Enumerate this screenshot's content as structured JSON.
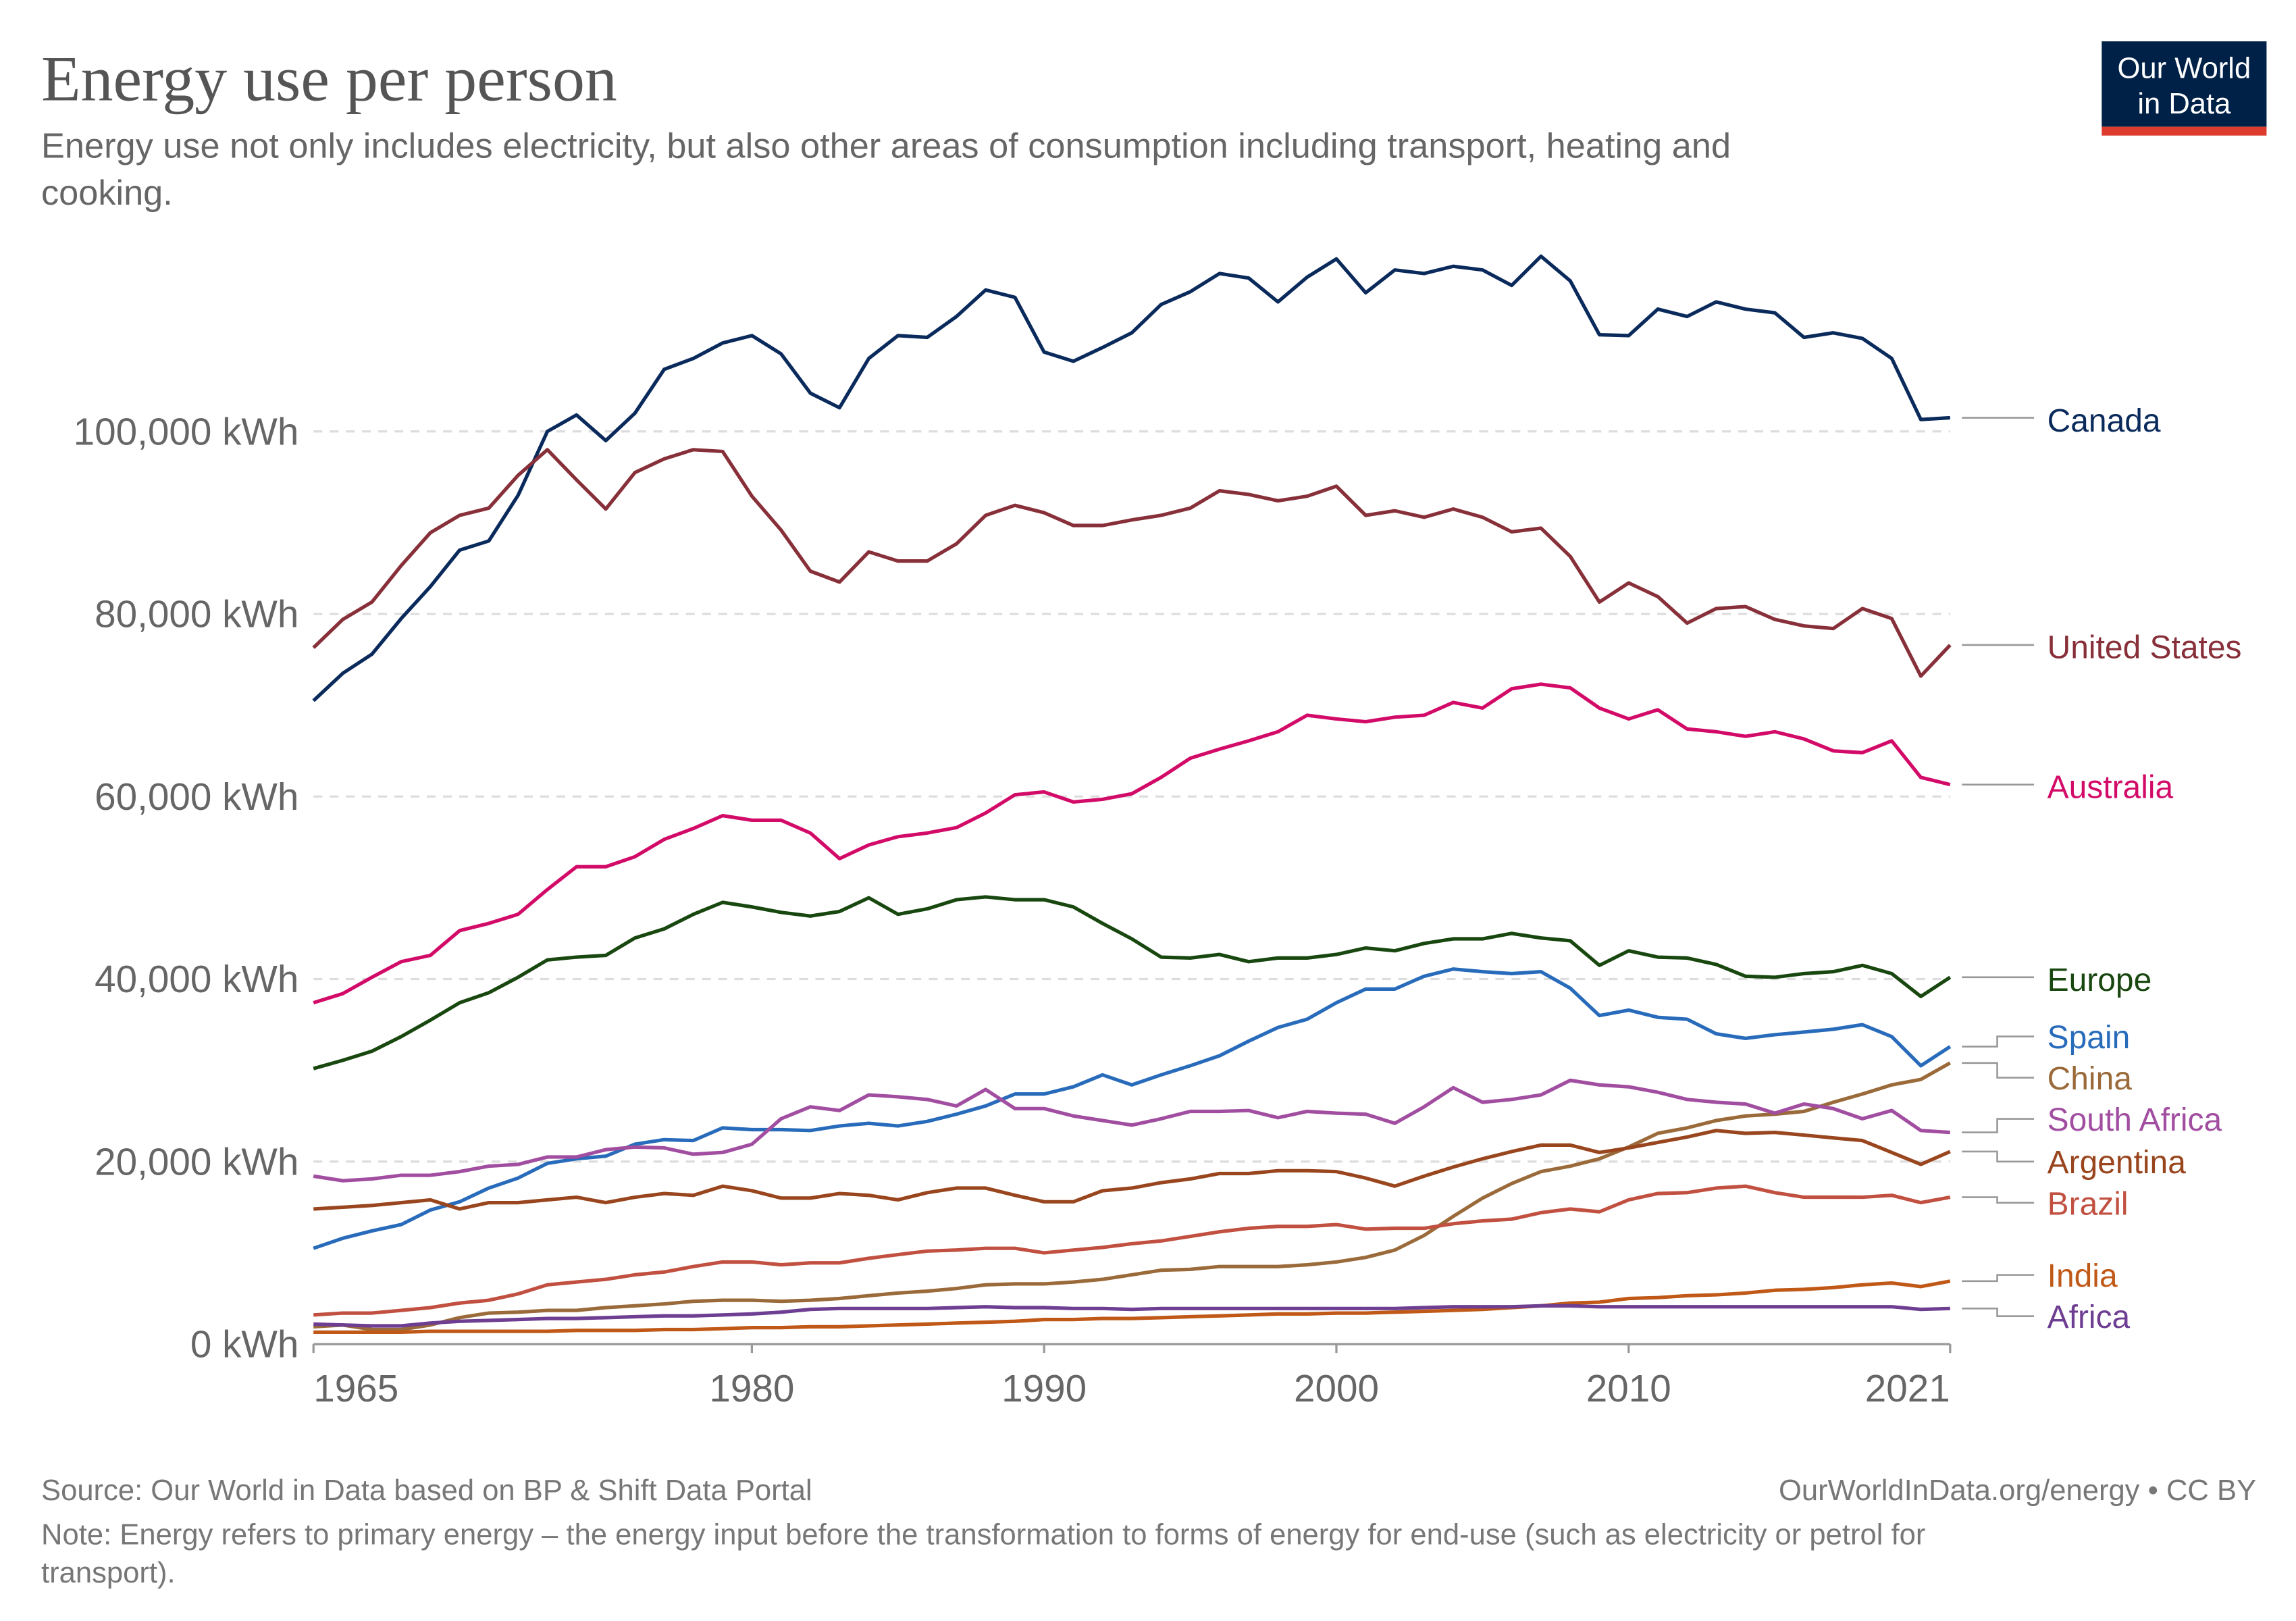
{
  "header": {
    "title": "Energy use per person",
    "subtitle_line1": "Energy use not only includes electricity, but also other areas of consumption including transport, heating and",
    "subtitle_line2": "cooking.",
    "logo_line1": "Our World",
    "logo_line2": "in Data",
    "logo_colors": {
      "background": "#002147",
      "bar": "#dc3b2e"
    }
  },
  "footer": {
    "source": "Source: Our World in Data based on BP & Shift Data Portal",
    "license": "OurWorldInData.org/energy • CC BY",
    "note_line1": "Note: Energy refers to primary energy – the energy input before the transformation to forms of energy for end-use (such as electricity or petrol for",
    "note_line2": "transport)."
  },
  "chart_data": {
    "type": "line",
    "title": "Energy use per person",
    "unit": "kWh",
    "x_start": 1965,
    "x_end": 2021,
    "xlim": [
      1965,
      2021
    ],
    "ylim": [
      0,
      120000
    ],
    "grid": "horizontal dashed",
    "legend": "right (line-end labels)",
    "x_ticks": [
      "1965",
      "1980",
      "1990",
      "2000",
      "2010",
      "2021"
    ],
    "y_ticks": [
      {
        "value": 0,
        "label": "0 kWh"
      },
      {
        "value": 20000,
        "label": "20,000 kWh"
      },
      {
        "value": 40000,
        "label": "40,000 kWh"
      },
      {
        "value": 60000,
        "label": "60,000 kWh"
      },
      {
        "value": 80000,
        "label": "80,000 kWh"
      },
      {
        "value": 100000,
        "label": "100,000 kWh"
      }
    ],
    "series": [
      {
        "name": "Canada",
        "color": "#0a2a5c",
        "values": [
          70500,
          73500,
          75600,
          79500,
          83000,
          87000,
          88000,
          93000,
          100000,
          101800,
          99000,
          102000,
          106800,
          108000,
          109700,
          110500,
          108500,
          104200,
          102600,
          108000,
          110500,
          110300,
          112600,
          115500,
          114700,
          108700,
          107700,
          109200,
          110800,
          113900,
          115300,
          117300,
          116800,
          114200,
          116900,
          118900,
          115200,
          117700,
          117300,
          118100,
          117700,
          116000,
          119200,
          116500,
          110600,
          110500,
          113400,
          112600,
          114200,
          113400,
          113000,
          110300,
          110800,
          110200,
          108000,
          101300,
          101500
        ]
      },
      {
        "name": "United States",
        "color": "#883039",
        "values": [
          76300,
          79400,
          81300,
          85300,
          88900,
          90800,
          91600,
          95200,
          98000,
          94700,
          91500,
          95500,
          97000,
          98000,
          97800,
          92900,
          89200,
          84700,
          83500,
          86800,
          85800,
          85800,
          87700,
          90800,
          91900,
          91100,
          89700,
          89700,
          90300,
          90800,
          91600,
          93500,
          93100,
          92400,
          92900,
          94000,
          90800,
          91300,
          90600,
          91500,
          90600,
          89000,
          89400,
          86300,
          81300,
          83400,
          81900,
          79000,
          80600,
          80800,
          79400,
          78700,
          78400,
          80600,
          79500,
          73200,
          76600
        ]
      },
      {
        "name": "Australia",
        "color": "#d30b68",
        "values": [
          37400,
          38400,
          40200,
          41900,
          42600,
          45300,
          46100,
          47100,
          49800,
          52300,
          52300,
          53400,
          55300,
          56500,
          57900,
          57400,
          57400,
          56000,
          53200,
          54700,
          55600,
          56000,
          56600,
          58200,
          60200,
          60500,
          59400,
          59700,
          60300,
          62100,
          64200,
          65200,
          66100,
          67100,
          68900,
          68500,
          68200,
          68700,
          68900,
          70300,
          69700,
          71800,
          72300,
          71900,
          69700,
          68500,
          69500,
          67400,
          67100,
          66600,
          67100,
          66300,
          65000,
          64800,
          66100,
          62100,
          61300
        ]
      },
      {
        "name": "Europe",
        "color": "#18470f",
        "values": [
          30200,
          31100,
          32100,
          33700,
          35500,
          37400,
          38500,
          40200,
          42100,
          42400,
          42600,
          44500,
          45500,
          47100,
          48400,
          47900,
          47300,
          46900,
          47400,
          48900,
          47100,
          47700,
          48700,
          49000,
          48700,
          48700,
          47900,
          46100,
          44400,
          42400,
          42300,
          42700,
          41900,
          42300,
          42300,
          42700,
          43400,
          43100,
          43900,
          44400,
          44400,
          45000,
          44500,
          44200,
          41500,
          43100,
          42400,
          42300,
          41600,
          40300,
          40200,
          40600,
          40800,
          41500,
          40600,
          38100,
          40200
        ]
      },
      {
        "name": "Spain",
        "color": "#286bbb",
        "values": [
          10500,
          11600,
          12400,
          13100,
          14700,
          15600,
          17100,
          18200,
          19800,
          20300,
          20600,
          21900,
          22400,
          22300,
          23700,
          23500,
          23500,
          23400,
          23900,
          24200,
          23900,
          24400,
          25200,
          26100,
          27400,
          27400,
          28200,
          29500,
          28400,
          29500,
          30500,
          31600,
          33200,
          34700,
          35600,
          37400,
          38900,
          38900,
          40300,
          41100,
          40800,
          40600,
          40800,
          39000,
          36000,
          36600,
          35800,
          35600,
          34000,
          33500,
          33900,
          34200,
          34500,
          35000,
          33700,
          30500,
          32600
        ]
      },
      {
        "name": "China",
        "color": "#9a6a3a",
        "values": [
          1900,
          2100,
          1600,
          1600,
          2100,
          2900,
          3400,
          3500,
          3700,
          3700,
          4000,
          4200,
          4400,
          4700,
          4800,
          4800,
          4700,
          4800,
          5000,
          5300,
          5600,
          5800,
          6100,
          6500,
          6600,
          6600,
          6800,
          7100,
          7600,
          8100,
          8200,
          8500,
          8500,
          8500,
          8700,
          9000,
          9500,
          10300,
          11900,
          14000,
          16000,
          17600,
          18900,
          19500,
          20300,
          21600,
          23100,
          23700,
          24500,
          25000,
          25200,
          25500,
          26500,
          27400,
          28400,
          29000,
          30800
        ]
      },
      {
        "name": "South Africa",
        "color": "#a14ea1",
        "values": [
          18400,
          17900,
          18100,
          18500,
          18500,
          18900,
          19500,
          19700,
          20500,
          20500,
          21300,
          21600,
          21500,
          20800,
          21000,
          21900,
          24700,
          26000,
          25600,
          27300,
          27100,
          26800,
          26100,
          27900,
          25800,
          25800,
          25000,
          24500,
          24000,
          24700,
          25500,
          25500,
          25600,
          24800,
          25500,
          25300,
          25200,
          24200,
          26000,
          28100,
          26500,
          26800,
          27300,
          28900,
          28400,
          28200,
          27600,
          26800,
          26500,
          26300,
          25300,
          26300,
          25800,
          24700,
          25600,
          23400,
          23200
        ]
      },
      {
        "name": "Argentina",
        "color": "#99461f",
        "values": [
          14800,
          15000,
          15200,
          15500,
          15800,
          14800,
          15500,
          15500,
          15800,
          16100,
          15500,
          16100,
          16500,
          16300,
          17300,
          16800,
          16000,
          16000,
          16500,
          16300,
          15800,
          16600,
          17100,
          17100,
          16300,
          15600,
          15600,
          16800,
          17100,
          17700,
          18100,
          18700,
          18700,
          19000,
          19000,
          18900,
          18200,
          17300,
          18400,
          19400,
          20300,
          21100,
          21800,
          21800,
          21000,
          21500,
          22100,
          22700,
          23400,
          23100,
          23200,
          22900,
          22600,
          22300,
          21000,
          19700,
          21100
        ]
      },
      {
        "name": "Brazil",
        "color": "#c15041",
        "values": [
          3200,
          3400,
          3400,
          3700,
          4000,
          4500,
          4800,
          5500,
          6500,
          6800,
          7100,
          7600,
          7900,
          8500,
          9000,
          9000,
          8700,
          8900,
          8900,
          9400,
          9800,
          10200,
          10300,
          10500,
          10500,
          10000,
          10300,
          10600,
          11000,
          11300,
          11800,
          12300,
          12700,
          12900,
          12900,
          13100,
          12600,
          12700,
          12700,
          13200,
          13500,
          13700,
          14400,
          14800,
          14500,
          15800,
          16500,
          16600,
          17100,
          17300,
          16600,
          16100,
          16100,
          16100,
          16300,
          15500,
          16100
        ]
      },
      {
        "name": "India",
        "color": "#c05917",
        "values": [
          1300,
          1300,
          1300,
          1300,
          1400,
          1400,
          1400,
          1400,
          1400,
          1500,
          1500,
          1500,
          1600,
          1600,
          1700,
          1800,
          1800,
          1900,
          1900,
          2000,
          2100,
          2200,
          2300,
          2400,
          2500,
          2700,
          2700,
          2800,
          2800,
          2900,
          3000,
          3100,
          3200,
          3300,
          3300,
          3400,
          3400,
          3500,
          3600,
          3700,
          3800,
          4000,
          4200,
          4500,
          4600,
          5000,
          5100,
          5300,
          5400,
          5600,
          5900,
          6000,
          6200,
          6500,
          6700,
          6300,
          6900
        ]
      },
      {
        "name": "Africa",
        "color": "#6d3e91",
        "values": [
          2200,
          2100,
          2000,
          2000,
          2300,
          2500,
          2600,
          2700,
          2800,
          2800,
          2900,
          3000,
          3100,
          3100,
          3200,
          3300,
          3500,
          3800,
          3900,
          3900,
          3900,
          3900,
          4000,
          4100,
          4000,
          4000,
          3900,
          3900,
          3800,
          3900,
          3900,
          3900,
          3900,
          3900,
          3900,
          3900,
          3900,
          3900,
          4000,
          4100,
          4100,
          4100,
          4200,
          4200,
          4100,
          4100,
          4100,
          4100,
          4100,
          4100,
          4100,
          4100,
          4100,
          4100,
          4100,
          3800,
          3900
        ]
      }
    ]
  }
}
